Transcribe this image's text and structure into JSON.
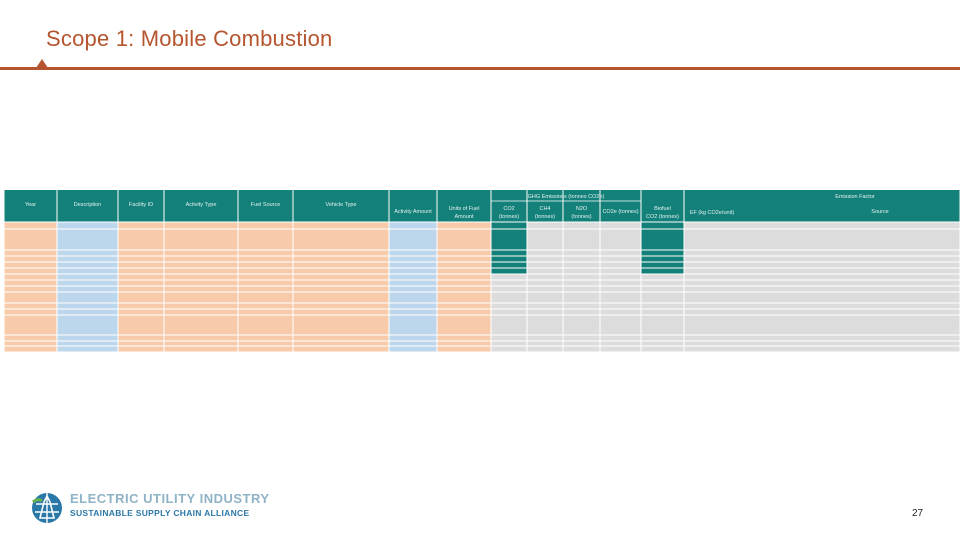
{
  "slide": {
    "title": "Scope 1: Mobile Combustion",
    "page_number": "27",
    "brand_line1": "ELECTRIC UTILITY INDUSTRY",
    "brand_line2": "SUSTAINABLE SUPPLY CHAIN ALLIANCE"
  },
  "colors": {
    "accent": "#b5552f",
    "header_teal": "#138079",
    "peach": "#f7cbaa",
    "light_blue": "#bcd6ec",
    "gray": "#dcdcdc"
  },
  "table": {
    "group_headers": {
      "ghg": "GHG Emissions (tonnes CO2e)",
      "emission_factor": "Emission Factor"
    },
    "columns": [
      "Year",
      "Description",
      "Facility ID",
      "Activity Type",
      "Fuel Source",
      "Vehicle Type",
      "Activity Amount",
      "Units of Fuel Amount",
      "CO2 (tonnes)",
      "CH4 (tonnes)",
      "N2O (tonnes)",
      "CO2e (tonnes)",
      "Biofuel CO2 (tonnes)",
      "EF (kg CO2e/unit)",
      "Source"
    ]
  }
}
